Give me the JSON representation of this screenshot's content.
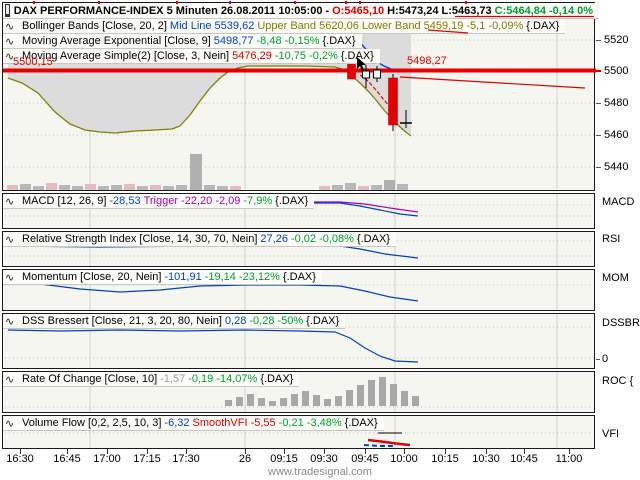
{
  "colors": {
    "red": "#DD0000",
    "green": "#00A030",
    "blue": "#0040D0",
    "olive": "#808000",
    "magenta": "#A800A8",
    "gray": "#9A9A9A",
    "black": "#000000"
  },
  "title_row": {
    "segments": [
      {
        "t": "DAX PERFORMANCE-INDEX 5 Minuten",
        "c": "#000000",
        "b": true
      },
      {
        "t": "26.08.2011 10:05:00",
        "c": "#000000",
        "b": true
      },
      {
        "t": "-",
        "c": "#000000",
        "b": true
      },
      {
        "t": "O:5465,10",
        "c": "#DD0000",
        "b": true
      },
      {
        "t": "H:5473,24",
        "c": "#000000",
        "b": true
      },
      {
        "t": "L:5463,73",
        "c": "#000000",
        "b": true
      },
      {
        "t": "C:5464,84",
        "c": "#00A030",
        "b": true
      },
      {
        "t": "-0,14",
        "c": "#00A030",
        "b": true
      },
      {
        "t": "0%",
        "c": "#00A030",
        "b": true
      }
    ]
  },
  "indicator_rows": {
    "bollinger": {
      "segments": [
        {
          "t": "Bollinger Bands [Close, 20, 2]",
          "c": "#000000"
        },
        {
          "t": "Mid Line 5539,62",
          "c": "#0040D0"
        },
        {
          "t": "Upper Band 5620,06",
          "c": "#808000"
        },
        {
          "t": "Lower Band 5459,19",
          "c": "#808000"
        },
        {
          "t": "-5,1 -0,09%",
          "c": "#808000"
        },
        {
          "t": "{.DAX}",
          "c": "#000000"
        }
      ]
    },
    "ma_exponential": {
      "segments": [
        {
          "t": "Moving Average Exponential [Close, 9]",
          "c": "#000000"
        },
        {
          "t": "5498,77",
          "c": "#0040D0"
        },
        {
          "t": "-8,48 -0,15%",
          "c": "#00A030"
        },
        {
          "t": "{.DAX}",
          "c": "#000000"
        }
      ]
    },
    "ma_simple": {
      "segments": [
        {
          "t": "Moving Average Simple(2) [Close, 3, Nein]",
          "c": "#000000"
        },
        {
          "t": "5476,29",
          "c": "#DD0000"
        },
        {
          "t": "-10,75 -0,2%",
          "c": "#00A030"
        },
        {
          "t": "{.DAX}",
          "c": "#000000"
        }
      ]
    },
    "macd": {
      "segments": [
        {
          "t": "MACD [12, 26, 9]",
          "c": "#000000"
        },
        {
          "t": "-28,53",
          "c": "#0040D0"
        },
        {
          "t": "Trigger -22,20 -2,09",
          "c": "#A800A8"
        },
        {
          "t": "-7,9%",
          "c": "#00A030"
        },
        {
          "t": "{.DAX}",
          "c": "#000000"
        }
      ]
    },
    "rsi": {
      "segments": [
        {
          "t": "Relative Strength Index [Close, 14, 30, 70, Nein]",
          "c": "#000000"
        },
        {
          "t": "27,26",
          "c": "#0040D0"
        },
        {
          "t": "-0,02 -0,08%",
          "c": "#00A030"
        },
        {
          "t": "{.DAX}",
          "c": "#000000"
        }
      ]
    },
    "momentum": {
      "segments": [
        {
          "t": "Momentum [Close, 20, Nein]",
          "c": "#000000"
        },
        {
          "t": "-101,91",
          "c": "#0040D0"
        },
        {
          "t": "-19,14 -23,12%",
          "c": "#00A030"
        },
        {
          "t": "{.DAX}",
          "c": "#000000"
        }
      ]
    },
    "dss": {
      "segments": [
        {
          "t": "DSS Bressert [Close, 21, 3, 20, 80, Nein]",
          "c": "#000000"
        },
        {
          "t": "0,28",
          "c": "#0040D0"
        },
        {
          "t": "-0,28 -50%",
          "c": "#00A030"
        },
        {
          "t": "{.DAX}",
          "c": "#000000"
        }
      ]
    },
    "roc": {
      "segments": [
        {
          "t": "Rate Of Change [Close, 10]",
          "c": "#000000"
        },
        {
          "t": "-1,57",
          "c": "#9A9A9A"
        },
        {
          "t": "-0,19 -14,07%",
          "c": "#00A030"
        },
        {
          "t": "{.DAX}",
          "c": "#000000"
        }
      ]
    },
    "vfi": {
      "segments": [
        {
          "t": "Volume Flow [0,2, 2,5, 10, 3]",
          "c": "#000000"
        },
        {
          "t": "-6,32",
          "c": "#0040D0"
        },
        {
          "t": "SmoothVFI -5,55",
          "c": "#DD0000"
        },
        {
          "t": "-0,21 -3,48%",
          "c": "#00A030"
        },
        {
          "t": "{.DAX}",
          "c": "#000000"
        }
      ]
    }
  },
  "right_labels": {
    "macd": "MACD",
    "rsi": "RSI",
    "mom": "MOM",
    "dss": "DSSBR",
    "dss_zero": "0",
    "roc": "ROC {",
    "vfi": "VFI"
  },
  "price_axis": [
    "5520",
    "5500",
    "5480",
    "5460",
    "5440"
  ],
  "chart_labels": {
    "level_left": "5500,15",
    "level_right": "5498,27"
  },
  "time_axis": [
    "16:30",
    "16:45",
    "17:00",
    "17:15",
    "17:30",
    "26",
    "09:15",
    "09:30",
    "09:45",
    "10:00",
    "10:15",
    "10:30",
    "10:45",
    "11:00"
  ],
  "watermark": "www.tradesignal.com"
}
